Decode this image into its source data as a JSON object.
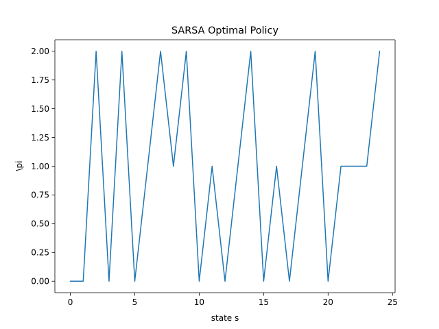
{
  "chart_data": {
    "type": "line",
    "title": "SARSA Optimal Policy",
    "xlabel": "state s",
    "ylabel": "\\pi",
    "xlim": [
      -1.2,
      25.2
    ],
    "ylim": [
      -0.1,
      2.1
    ],
    "xticks": [
      0,
      5,
      10,
      15,
      20,
      25
    ],
    "xtick_labels": [
      "0",
      "5",
      "10",
      "15",
      "20",
      "25"
    ],
    "yticks": [
      0,
      0.25,
      0.5,
      0.75,
      1,
      1.25,
      1.5,
      1.75,
      2
    ],
    "ytick_labels": [
      "0.00",
      "0.25",
      "0.50",
      "0.75",
      "1.00",
      "1.25",
      "1.50",
      "1.75",
      "2.00"
    ],
    "grid": false,
    "legend": false,
    "series": [
      {
        "color": "#1f77b4",
        "x": [
          0,
          1,
          2,
          3,
          4,
          5,
          6,
          7,
          8,
          9,
          10,
          11,
          12,
          13,
          14,
          15,
          16,
          17,
          18,
          19,
          20,
          21,
          22,
          23,
          24
        ],
        "values": [
          0,
          0,
          2,
          0,
          2,
          0,
          1,
          2,
          1,
          2,
          0,
          1,
          0,
          1,
          2,
          0,
          1,
          0,
          1,
          2,
          0,
          1,
          1,
          1,
          2
        ]
      }
    ]
  }
}
